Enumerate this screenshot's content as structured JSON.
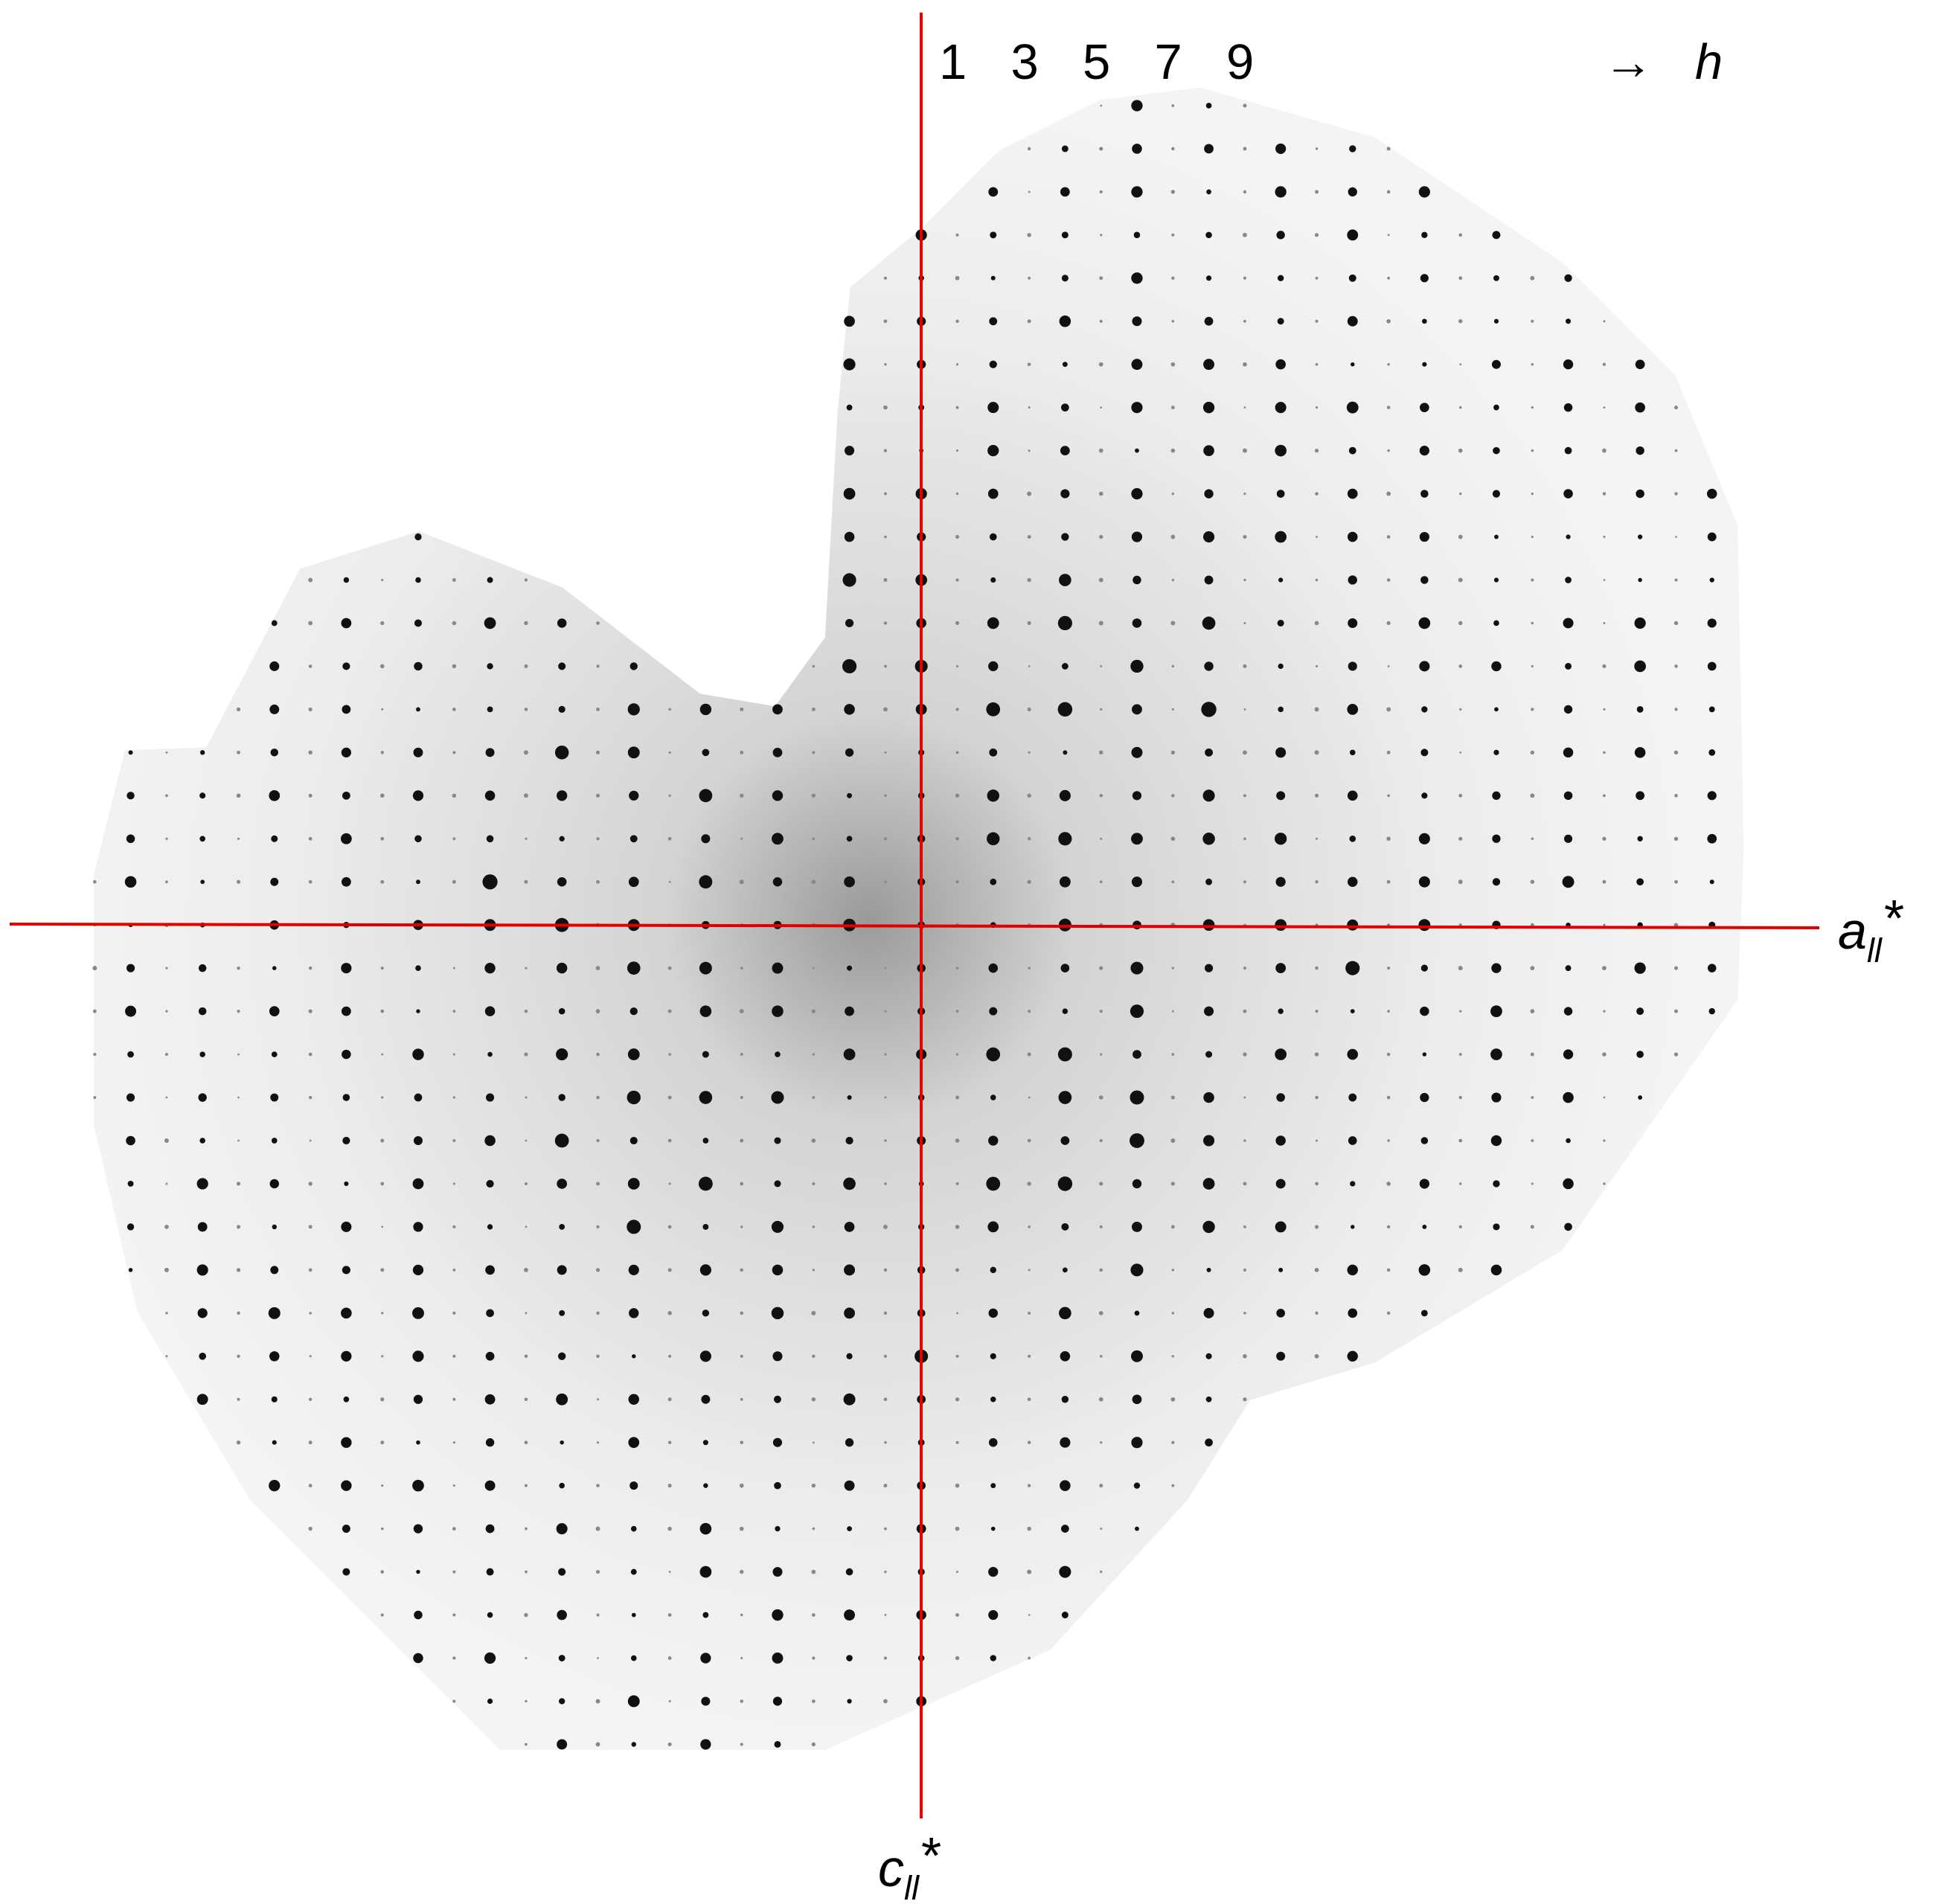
{
  "index_labels": [
    "1",
    "3",
    "5",
    "7",
    "9"
  ],
  "direction": {
    "arrow": "→",
    "index": "h"
  },
  "axes": {
    "horizontal": {
      "main": "a",
      "sub": "ll",
      "sup": "*"
    },
    "vertical": {
      "main": "c",
      "sub": "ll",
      "sup": "*"
    }
  }
}
